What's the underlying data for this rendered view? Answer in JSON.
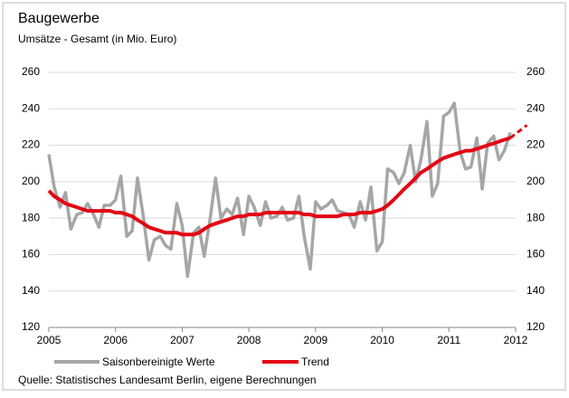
{
  "chart_data": {
    "type": "line",
    "title": "Baugewerbe",
    "subtitle": "Umsätze - Gesamt (in Mio. Euro)",
    "source": "Quelle: Statistisches Landesamt Berlin, eigene Berechnungen",
    "x": [
      2005,
      2005.08,
      2005.17,
      2005.25,
      2005.33,
      2005.42,
      2005.5,
      2005.58,
      2005.67,
      2005.75,
      2005.83,
      2005.92,
      2006,
      2006.08,
      2006.17,
      2006.25,
      2006.33,
      2006.42,
      2006.5,
      2006.58,
      2006.67,
      2006.75,
      2006.83,
      2006.92,
      2007,
      2007.08,
      2007.17,
      2007.25,
      2007.33,
      2007.42,
      2007.5,
      2007.58,
      2007.67,
      2007.75,
      2007.83,
      2007.92,
      2008,
      2008.08,
      2008.17,
      2008.25,
      2008.33,
      2008.42,
      2008.5,
      2008.58,
      2008.67,
      2008.75,
      2008.83,
      2008.92,
      2009,
      2009.08,
      2009.17,
      2009.25,
      2009.33,
      2009.42,
      2009.5,
      2009.58,
      2009.67,
      2009.75,
      2009.83,
      2009.92,
      2010,
      2010.08,
      2010.17,
      2010.25,
      2010.33,
      2010.42,
      2010.5,
      2010.58,
      2010.67,
      2010.75,
      2010.83,
      2010.92,
      2011,
      2011.08,
      2011.17,
      2011.25,
      2011.33,
      2011.42,
      2011.5,
      2011.58,
      2011.67,
      2011.75,
      2011.83,
      2011.92
    ],
    "series": [
      {
        "name": "Saisonbereinigte Werte",
        "color": "#a6a6a6",
        "values": [
          215,
          197,
          186,
          194,
          174,
          182,
          183,
          188,
          182,
          175,
          187,
          187,
          190,
          203,
          170,
          173,
          202,
          180,
          157,
          168,
          170,
          165,
          163,
          188,
          176,
          148,
          172,
          175,
          159,
          180,
          202,
          180,
          185,
          182,
          191,
          171,
          192,
          186,
          176,
          189,
          180,
          181,
          186,
          179,
          180,
          192,
          170,
          152,
          189,
          185,
          187,
          190,
          184,
          183,
          182,
          175,
          189,
          179,
          197,
          162,
          167,
          207,
          205,
          199,
          205,
          220,
          200,
          212,
          233,
          192,
          199,
          236,
          238,
          243,
          216,
          207,
          208,
          224,
          196,
          221,
          225,
          212,
          217,
          227
        ]
      },
      {
        "name": "Trend",
        "color": "#e30613",
        "values": [
          195,
          192,
          190,
          188,
          187,
          186,
          185,
          184,
          184,
          184,
          184,
          184,
          183,
          183,
          182,
          181,
          179,
          177,
          175,
          174,
          173,
          172,
          172,
          172,
          171,
          171,
          171,
          172,
          174,
          176,
          177,
          178,
          179,
          180,
          181,
          181,
          182,
          182,
          182,
          183,
          183,
          183,
          183,
          183,
          183,
          183,
          182,
          182,
          181,
          181,
          181,
          181,
          181,
          182,
          182,
          182,
          183,
          183,
          183,
          184,
          185,
          187,
          190,
          193,
          196,
          199,
          202,
          205,
          207,
          209,
          211,
          213,
          214,
          215,
          216,
          217,
          217,
          218,
          219,
          220,
          221,
          222,
          223,
          224
        ],
        "projection": {
          "x": [
            2011.92,
            2012.17
          ],
          "values": [
            224,
            231
          ]
        }
      }
    ],
    "xlim": [
      2005,
      2012
    ],
    "xticks": [
      2005,
      2006,
      2007,
      2008,
      2009,
      2010,
      2011,
      2012
    ],
    "ylim": [
      120,
      260
    ],
    "yticks": [
      120,
      140,
      160,
      180,
      200,
      220,
      240,
      260
    ],
    "y2lim": [
      120,
      260
    ],
    "y2ticks": [
      120,
      140,
      160,
      180,
      200,
      220,
      240,
      260
    ],
    "grid": true
  }
}
